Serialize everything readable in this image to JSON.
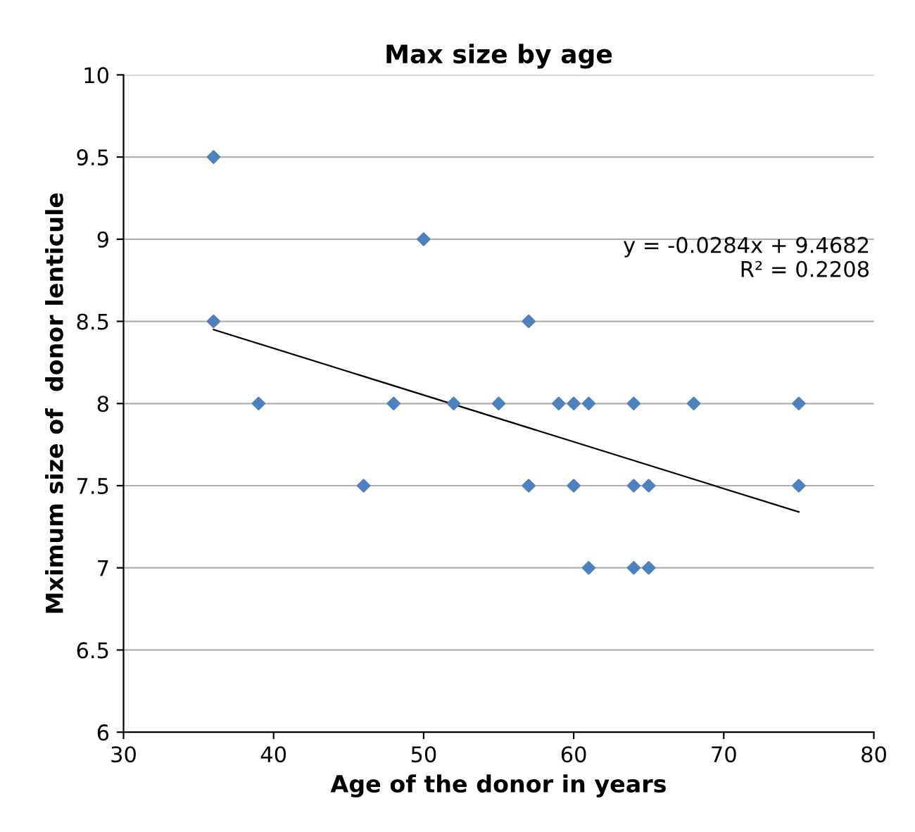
{
  "chart_data": {
    "type": "scatter",
    "title": "Max size by age",
    "xlabel": "Age of the donor in years",
    "ylabel": "Mximum size of  donor lenticule",
    "series": [
      {
        "color": "#4f81bd",
        "marker": "diamond",
        "x": [
          36,
          36,
          39,
          46,
          48,
          50,
          52,
          55,
          57,
          57,
          59,
          60,
          60,
          61,
          61,
          64,
          64,
          64,
          65,
          65,
          68,
          75,
          75
        ],
        "values": [
          9.5,
          8.5,
          8,
          7.5,
          8,
          9,
          8,
          8,
          8.5,
          7.5,
          8,
          8,
          7.5,
          8,
          7,
          8,
          7.5,
          7,
          7.5,
          7,
          8,
          8,
          7.5
        ]
      },
      {
        "type": "line",
        "color": "#000000",
        "marker": "none",
        "x": [
          36,
          75
        ],
        "values": [
          8.45,
          7.34
        ]
      }
    ],
    "annotations": [
      "y = -0.0284x + 9.4682\nR² = 0.2208"
    ],
    "xlim": [
      30,
      80
    ],
    "xticks": [
      30,
      40,
      50,
      60,
      70,
      80
    ],
    "ylim": [
      6,
      10
    ],
    "yticks": [
      6,
      6.5,
      7,
      7.5,
      8,
      8.5,
      9,
      9.5,
      10
    ],
    "grid": "y"
  }
}
